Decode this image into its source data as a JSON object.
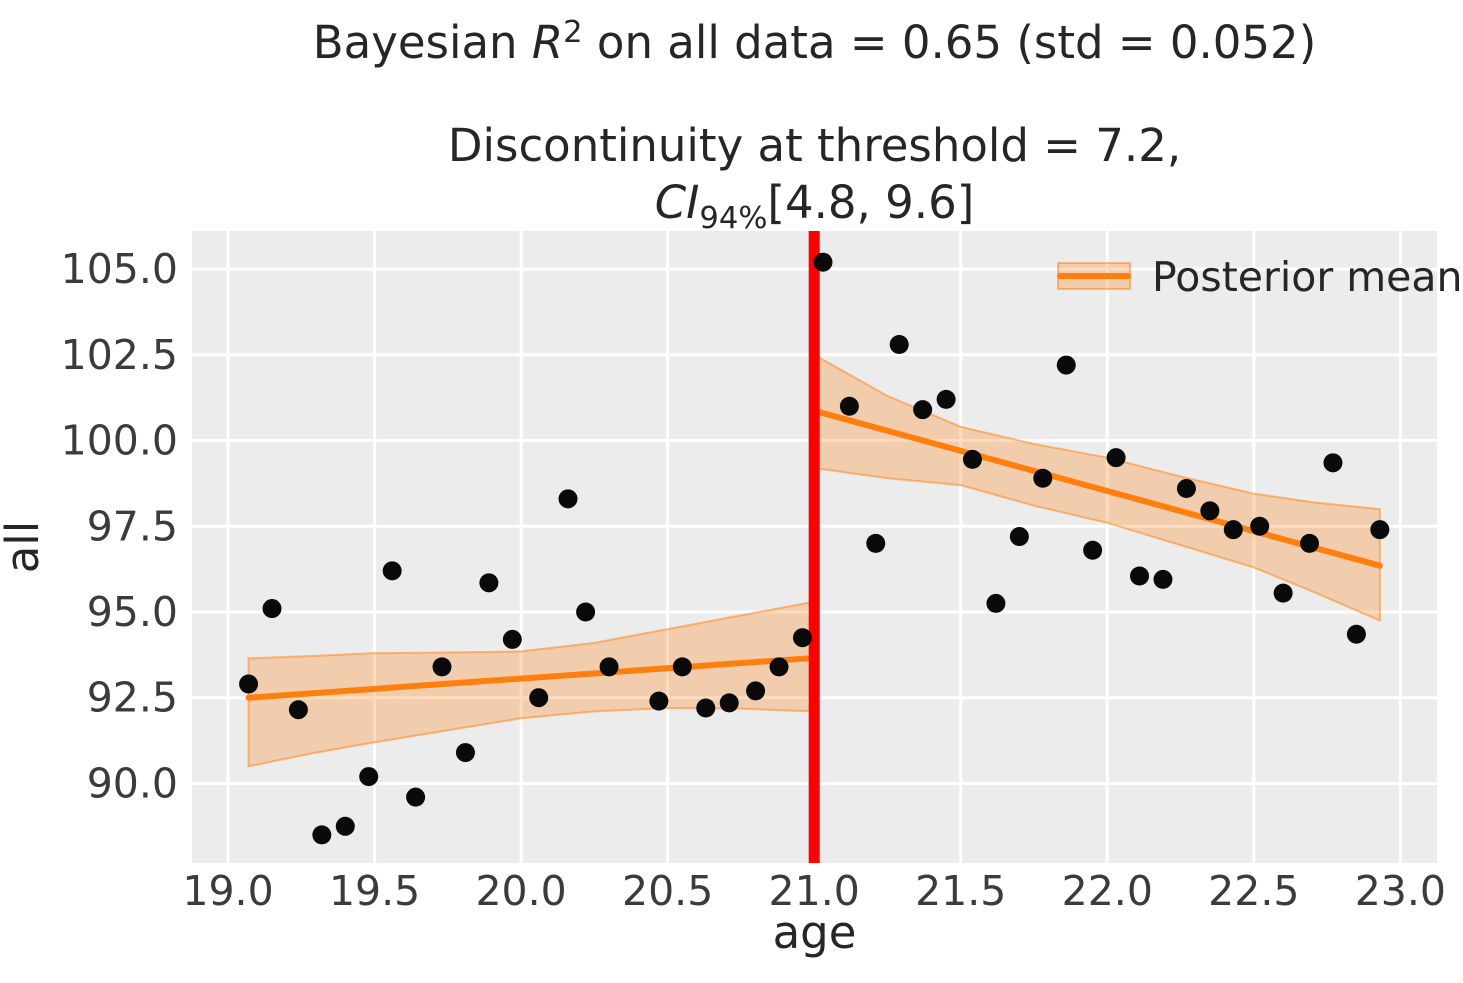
{
  "title": {
    "prefix": "Bayesian ",
    "math_var": "R",
    "math_sup": "2",
    "suffix": " on all data = 0.65 (std = 0.052)"
  },
  "subtitle": {
    "line1": "Discontinuity at threshold = 7.2,",
    "ci_var": "CI",
    "ci_sub": "94%",
    "ci_suffix": "[4.8, 9.6]"
  },
  "legend": {
    "label": "Posterior mean"
  },
  "chart_data": {
    "type": "scatter",
    "xlabel": "age",
    "ylabel": "all",
    "xlim": [
      18.877,
      23.125
    ],
    "ylim": [
      87.68,
      106.11
    ],
    "x_ticks": [
      19.0,
      19.5,
      20.0,
      20.5,
      21.0,
      21.5,
      22.0,
      22.5,
      23.0
    ],
    "x_tick_labels": [
      "19.0",
      "19.5",
      "20.0",
      "20.5",
      "21.0",
      "21.5",
      "22.0",
      "22.5",
      "23.0"
    ],
    "y_ticks": [
      90.0,
      92.5,
      95.0,
      97.5,
      100.0,
      102.5,
      105.0
    ],
    "y_tick_labels": [
      "90.0",
      "92.5",
      "95.0",
      "97.5",
      "100.0",
      "102.5",
      "105.0"
    ],
    "grid": true,
    "threshold_x": 21.0,
    "discontinuity": 7.2,
    "ci_94": [
      4.8,
      9.6
    ],
    "bayesian_r2": 0.65,
    "r2_std": 0.052,
    "series": [
      {
        "name": "observations-left-of-threshold",
        "points": [
          [
            19.07,
            92.9
          ],
          [
            19.15,
            95.1
          ],
          [
            19.24,
            92.15
          ],
          [
            19.32,
            88.5
          ],
          [
            19.4,
            88.75
          ],
          [
            19.48,
            90.2
          ],
          [
            19.56,
            96.2
          ],
          [
            19.64,
            89.6
          ],
          [
            19.73,
            93.4
          ],
          [
            19.81,
            90.9
          ],
          [
            19.89,
            95.85
          ],
          [
            19.97,
            94.2
          ],
          [
            20.06,
            92.5
          ],
          [
            20.16,
            98.3
          ],
          [
            20.22,
            95.0
          ],
          [
            20.3,
            93.4
          ],
          [
            20.47,
            92.4
          ],
          [
            20.55,
            93.4
          ],
          [
            20.63,
            92.2
          ],
          [
            20.71,
            92.35
          ],
          [
            20.8,
            92.7
          ],
          [
            20.88,
            93.4
          ],
          [
            20.96,
            94.25
          ]
        ]
      },
      {
        "name": "observations-right-of-threshold",
        "points": [
          [
            21.03,
            105.2
          ],
          [
            21.12,
            101.0
          ],
          [
            21.21,
            97.0
          ],
          [
            21.29,
            102.8
          ],
          [
            21.37,
            100.9
          ],
          [
            21.45,
            101.2
          ],
          [
            21.54,
            99.45
          ],
          [
            21.62,
            95.25
          ],
          [
            21.7,
            97.2
          ],
          [
            21.78,
            98.9
          ],
          [
            21.86,
            102.2
          ],
          [
            21.95,
            96.8
          ],
          [
            22.03,
            99.5
          ],
          [
            22.11,
            96.05
          ],
          [
            22.19,
            95.95
          ],
          [
            22.27,
            98.6
          ],
          [
            22.35,
            97.95
          ],
          [
            22.43,
            97.4
          ],
          [
            22.52,
            97.5
          ],
          [
            22.6,
            95.55
          ],
          [
            22.69,
            97.0
          ],
          [
            22.77,
            99.35
          ],
          [
            22.85,
            94.35
          ],
          [
            22.93,
            97.4
          ]
        ]
      }
    ],
    "posterior_mean_lines": [
      {
        "name": "posterior-mean-left",
        "x": [
          19.07,
          21.0
        ],
        "y": [
          92.5,
          93.66
        ]
      },
      {
        "name": "posterior-mean-right",
        "x": [
          21.0,
          22.93
        ],
        "y": [
          100.87,
          96.35
        ]
      }
    ],
    "ci_bands": [
      {
        "name": "ci-band-left",
        "x": [
          19.07,
          19.3,
          19.5,
          19.75,
          20.0,
          20.25,
          20.5,
          20.75,
          21.0
        ],
        "top": [
          93.65,
          93.72,
          93.8,
          93.82,
          93.85,
          94.1,
          94.5,
          94.9,
          95.3
        ],
        "bottom": [
          90.5,
          90.9,
          91.2,
          91.55,
          91.9,
          92.1,
          92.2,
          92.18,
          92.1
        ]
      },
      {
        "name": "ci-band-right",
        "x": [
          21.0,
          21.25,
          21.5,
          21.75,
          22.0,
          22.25,
          22.5,
          22.7,
          22.93
        ],
        "top": [
          102.5,
          101.3,
          100.4,
          99.9,
          99.5,
          98.95,
          98.45,
          98.2,
          98.0
        ],
        "bottom": [
          99.2,
          98.9,
          98.7,
          98.1,
          97.6,
          96.95,
          96.3,
          95.6,
          94.75
        ]
      }
    ],
    "colors": {
      "axes_background": "#ececec",
      "grid": "#ffffff",
      "scatter": "#0a0a0a",
      "posterior_mean": "#ff7f0e",
      "ci_band_fill": "rgba(255,127,14,0.28)",
      "ci_band_edge": "rgba(255,127,14,0.50)",
      "threshold_line": "#ff0000",
      "label_text": "#262626",
      "tick_text": "#3b3b3b"
    }
  }
}
